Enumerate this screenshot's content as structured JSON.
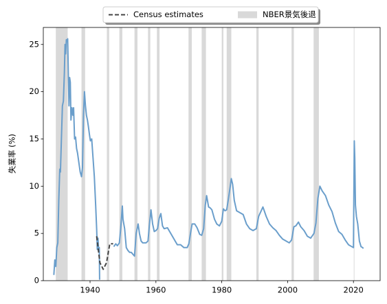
{
  "chart_data": {
    "type": "line",
    "ylabel": "失業率 (%)",
    "xlim": [
      1925.8,
      2028.1
    ],
    "ylim": [
      0,
      26.8
    ],
    "xticks": [
      1940,
      1960,
      1980,
      2000,
      2020
    ],
    "yticks": [
      0,
      5,
      10,
      15,
      20,
      25
    ],
    "legend": "upper center",
    "recessions": {
      "name": "NBER景気後退",
      "color": "#d9d9d9",
      "periods": [
        [
          1929.6,
          1933.2
        ],
        [
          1937.4,
          1938.5
        ],
        [
          1945.1,
          1945.8
        ],
        [
          1948.9,
          1949.8
        ],
        [
          1953.5,
          1954.4
        ],
        [
          1957.6,
          1958.3
        ],
        [
          1960.3,
          1961.1
        ],
        [
          1969.9,
          1970.9
        ],
        [
          1973.9,
          1975.2
        ],
        [
          1980.0,
          1980.5
        ],
        [
          1981.5,
          1982.9
        ],
        [
          1990.5,
          1991.2
        ],
        [
          2001.2,
          2001.9
        ],
        [
          2007.9,
          2009.5
        ],
        [
          2020.1,
          2020.3
        ]
      ]
    },
    "series": [
      {
        "color": "#6a9ecb",
        "dash": false,
        "x": [
          1929.0,
          1929.3,
          1929.6,
          1929.9,
          1930.2,
          1930.5,
          1930.8,
          1931.0,
          1931.3,
          1931.6,
          1931.9,
          1932.2,
          1932.4,
          1932.6,
          1932.8,
          1933.0,
          1933.2,
          1933.4,
          1933.6,
          1933.8,
          1934.0,
          1934.2,
          1934.5,
          1934.8,
          1935.0,
          1935.3,
          1935.6,
          1935.9,
          1936.2,
          1936.6,
          1937.0,
          1937.4,
          1937.7,
          1938.0,
          1938.3,
          1938.6,
          1938.9,
          1939.2,
          1939.5,
          1939.8,
          1940.1,
          1940.5,
          1940.9,
          1941.3,
          1941.7,
          1942.0,
          1942.2,
          1942.4,
          1942.6,
          1942.8,
          1942.9,
          1945.0,
          1947.2,
          1947.8,
          1948.3,
          1948.9,
          1949.3,
          1949.8,
          1950.0,
          1950.5,
          1951.0,
          1951.5,
          1952.0,
          1952.5,
          1953.0,
          1953.5,
          1954.0,
          1954.6,
          1955.0,
          1955.5,
          1956.0,
          1957.0,
          1957.6,
          1958.0,
          1958.5,
          1959.0,
          1959.5,
          1960.0,
          1960.5,
          1961.0,
          1961.5,
          1962.0,
          1962.5,
          1963.5,
          1964.5,
          1965.5,
          1966.5,
          1967.5,
          1968.5,
          1969.5,
          1970.0,
          1970.5,
          1971.0,
          1971.8,
          1972.5,
          1973.3,
          1973.9,
          1974.5,
          1975.0,
          1975.4,
          1976.0,
          1976.5,
          1977.0,
          1977.8,
          1978.5,
          1979.3,
          1980.0,
          1980.5,
          1981.0,
          1981.5,
          1982.0,
          1982.5,
          1982.9,
          1983.3,
          1983.8,
          1984.5,
          1985.5,
          1986.5,
          1987.5,
          1988.5,
          1989.5,
          1990.5,
          1991.2,
          1992.5,
          1993.5,
          1994.5,
          1995.5,
          1996.5,
          1997.5,
          1998.5,
          1999.5,
          2000.5,
          2001.2,
          2001.9,
          2002.5,
          2003.3,
          2004.0,
          2005.0,
          2006.0,
          2007.0,
          2008.0,
          2008.6,
          2009.2,
          2009.8,
          2010.5,
          2011.5,
          2012.5,
          2013.5,
          2014.5,
          2015.5,
          2016.5,
          2017.5,
          2018.5,
          2019.5,
          2020.0,
          2020.25,
          2020.4,
          2020.6,
          2020.9,
          2021.3,
          2021.8,
          2022.3,
          2022.8,
          2023.0
        ],
        "values": [
          0.6,
          2.2,
          1.5,
          3.5,
          4.0,
          8.5,
          11.8,
          11.5,
          15,
          18.5,
          19,
          22,
          25,
          24,
          25.5,
          25.3,
          25.6,
          22,
          18.5,
          21.5,
          21,
          17,
          18.3,
          17.5,
          18.3,
          15,
          15.2,
          14,
          13.5,
          12.5,
          11.5,
          11,
          12,
          17.5,
          20,
          18.5,
          17.5,
          17,
          16.3,
          15.5,
          14.8,
          15,
          13,
          11,
          8,
          5.5,
          3.3,
          4.5,
          3.3,
          3.5,
          0.1,
          null,
          3.6,
          3.9,
          3.7,
          4.0,
          5.5,
          7.9,
          6.5,
          5.5,
          3.5,
          3.2,
          3.0,
          3.0,
          2.8,
          2.6,
          5.0,
          6.0,
          5.0,
          4.2,
          4.0,
          4.0,
          4.2,
          5.8,
          7.5,
          6.0,
          5.2,
          5.3,
          5.5,
          6.6,
          7.1,
          5.8,
          5.5,
          5.6,
          5.0,
          4.4,
          3.8,
          3.8,
          3.5,
          3.5,
          3.9,
          5.0,
          6.0,
          6.0,
          5.6,
          4.9,
          4.8,
          5.5,
          8.0,
          9.0,
          7.8,
          7.7,
          7.5,
          6.5,
          6.0,
          5.8,
          6.3,
          7.6,
          7.4,
          7.5,
          8.6,
          9.8,
          10.8,
          10.2,
          8.5,
          7.4,
          7.2,
          7.0,
          6.0,
          5.5,
          5.3,
          5.5,
          6.8,
          7.8,
          6.8,
          6.0,
          5.6,
          5.3,
          4.8,
          4.4,
          4.2,
          4.0,
          4.3,
          5.7,
          5.8,
          6.2,
          5.7,
          5.3,
          4.7,
          4.5,
          5.0,
          6.1,
          8.7,
          10.0,
          9.5,
          9.0,
          8.0,
          7.3,
          6.1,
          5.2,
          4.9,
          4.3,
          3.8,
          3.6,
          3.5,
          14.8,
          13.0,
          8.0,
          6.8,
          6.0,
          4.2,
          3.6,
          3.5,
          3.4
        ]
      },
      {
        "name": "Census estimates",
        "color": "#444444",
        "dash": true,
        "x": [
          1942,
          1943,
          1944,
          1945,
          1946,
          1947
        ],
        "values": [
          4.7,
          1.9,
          1.2,
          1.9,
          3.9,
          3.9
        ]
      }
    ]
  }
}
